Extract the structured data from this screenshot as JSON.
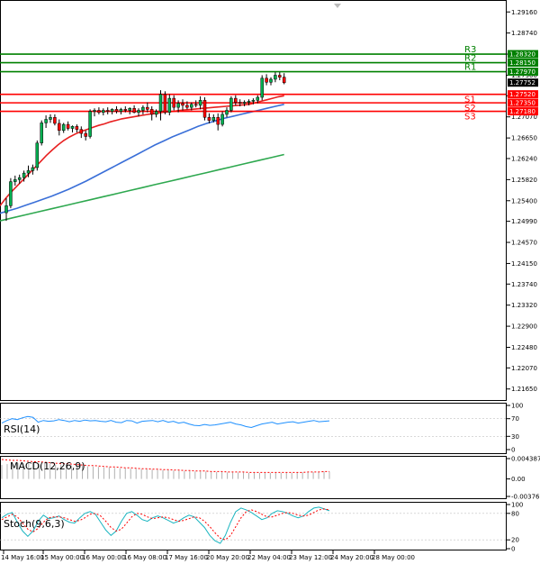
{
  "chart_data": {
    "type": "candlestick",
    "main": {
      "y_ticks": [
        "1.29160",
        "1.28740",
        "1.28320",
        "1.27900",
        "1.27490",
        "1.27070",
        "1.26650",
        "1.26240",
        "1.25820",
        "1.25400",
        "1.24990",
        "1.24570",
        "1.24150",
        "1.23740",
        "1.23320",
        "1.22900",
        "1.22480",
        "1.22070",
        "1.21650"
      ],
      "y_range": [
        1.2143,
        1.2938
      ],
      "current_price": "1.27752",
      "current_price_value": 1.27752,
      "x_labels": [
        "14 May 16:00",
        "15 May 00:00",
        "16 May 00:00",
        "16 May 08:00",
        "17 May 16:00",
        "20 May 20:00",
        "22 May 04:00",
        "23 May 12:00",
        "24 May 20:00",
        "28 May 00:00"
      ],
      "levels": [
        {
          "name": "R3",
          "value": 1.2832,
          "tag": "1.28320",
          "color": "#008000"
        },
        {
          "name": "R2",
          "value": 1.2815,
          "tag": "1.28150",
          "color": "#008000"
        },
        {
          "name": "R1",
          "value": 1.2797,
          "tag": "1.27970",
          "color": "#008000"
        },
        {
          "name": "S1",
          "value": 1.2752,
          "tag": "1.27520",
          "color": "#ff0000"
        },
        {
          "name": "S2",
          "value": 1.2735,
          "tag": "1.27350",
          "color": "#ff0000"
        },
        {
          "name": "S3",
          "value": 1.2718,
          "tag": "1.27180",
          "color": "#ff0000"
        }
      ],
      "candles": [
        [
          1.2516,
          1.2545,
          1.25,
          1.253
        ],
        [
          1.253,
          1.2585,
          1.2525,
          1.2578
        ],
        [
          1.2578,
          1.259,
          1.257,
          1.2582
        ],
        [
          1.2582,
          1.2592,
          1.2574,
          1.2586
        ],
        [
          1.2586,
          1.26,
          1.2578,
          1.2595
        ],
        [
          1.2595,
          1.261,
          1.2587,
          1.26
        ],
        [
          1.26,
          1.2612,
          1.2592,
          1.2606
        ],
        [
          1.2606,
          1.266,
          1.26,
          1.2655
        ],
        [
          1.2655,
          1.27,
          1.265,
          1.2695
        ],
        [
          1.2695,
          1.271,
          1.2685,
          1.2702
        ],
        [
          1.2702,
          1.2712,
          1.2695,
          1.2706
        ],
        [
          1.2706,
          1.2712,
          1.269,
          1.2694
        ],
        [
          1.2694,
          1.2702,
          1.267,
          1.268
        ],
        [
          1.268,
          1.2695,
          1.2675,
          1.2692
        ],
        [
          1.2692,
          1.2698,
          1.268,
          1.2684
        ],
        [
          1.2684,
          1.269,
          1.2676,
          1.2688
        ],
        [
          1.2688,
          1.2692,
          1.2676,
          1.2682
        ],
        [
          1.2682,
          1.2688,
          1.2665,
          1.2674
        ],
        [
          1.2674,
          1.268,
          1.266,
          1.2668
        ],
        [
          1.2668,
          1.2722,
          1.2664,
          1.2718
        ],
        [
          1.2718,
          1.2724,
          1.2708,
          1.272
        ],
        [
          1.272,
          1.2726,
          1.2712,
          1.2716
        ],
        [
          1.2716,
          1.2724,
          1.271,
          1.272
        ],
        [
          1.272,
          1.2726,
          1.2712,
          1.2718
        ],
        [
          1.2718,
          1.2724,
          1.2712,
          1.2722
        ],
        [
          1.2722,
          1.2728,
          1.2714,
          1.2718
        ],
        [
          1.2718,
          1.2725,
          1.2712,
          1.2722
        ],
        [
          1.2722,
          1.2728,
          1.2716,
          1.272
        ],
        [
          1.272,
          1.2726,
          1.2712,
          1.2724
        ],
        [
          1.2724,
          1.273,
          1.2714,
          1.2716
        ],
        [
          1.2716,
          1.2724,
          1.2708,
          1.272
        ],
        [
          1.272,
          1.273,
          1.2712,
          1.2726
        ],
        [
          1.2726,
          1.2736,
          1.2716,
          1.2722
        ],
        [
          1.2722,
          1.2728,
          1.27,
          1.2712
        ],
        [
          1.2712,
          1.2722,
          1.2706,
          1.2718
        ],
        [
          1.2718,
          1.276,
          1.27,
          1.2752
        ],
        [
          1.2752,
          1.2758,
          1.2712,
          1.2716
        ],
        [
          1.2716,
          1.2752,
          1.271,
          1.2744
        ],
        [
          1.2744,
          1.275,
          1.272,
          1.2726
        ],
        [
          1.2726,
          1.274,
          1.2716,
          1.2734
        ],
        [
          1.2734,
          1.2742,
          1.272,
          1.273
        ],
        [
          1.273,
          1.2738,
          1.2722,
          1.2726
        ],
        [
          1.2726,
          1.2736,
          1.272,
          1.2732
        ],
        [
          1.2732,
          1.274,
          1.2726,
          1.273
        ],
        [
          1.273,
          1.2748,
          1.2722,
          1.274
        ],
        [
          1.274,
          1.2746,
          1.27,
          1.2706
        ],
        [
          1.2706,
          1.2714,
          1.2694,
          1.27
        ],
        [
          1.27,
          1.2712,
          1.2696,
          1.2706
        ],
        [
          1.2706,
          1.2714,
          1.268,
          1.2692
        ],
        [
          1.2692,
          1.2718,
          1.2688,
          1.2712
        ],
        [
          1.2712,
          1.2726,
          1.2706,
          1.272
        ],
        [
          1.272,
          1.2748,
          1.2716,
          1.2744
        ],
        [
          1.2744,
          1.275,
          1.273,
          1.2736
        ],
        [
          1.2736,
          1.2742,
          1.2728,
          1.2734
        ],
        [
          1.2734,
          1.274,
          1.2728,
          1.2736
        ],
        [
          1.2736,
          1.2742,
          1.273,
          1.2738
        ],
        [
          1.2738,
          1.2744,
          1.2732,
          1.274
        ],
        [
          1.274,
          1.275,
          1.2734,
          1.2746
        ],
        [
          1.2746,
          1.279,
          1.274,
          1.2784
        ],
        [
          1.2784,
          1.2792,
          1.277,
          1.2776
        ],
        [
          1.2776,
          1.2786,
          1.277,
          1.2782
        ],
        [
          1.2782,
          1.2796,
          1.2776,
          1.279
        ],
        [
          1.279,
          1.2796,
          1.278,
          1.2786
        ],
        [
          1.2786,
          1.2794,
          1.2772,
          1.2775
        ]
      ],
      "ma_red": [
        1.253,
        1.2545,
        1.2558,
        1.257,
        1.2582,
        1.2594,
        1.2606,
        1.2618,
        1.263,
        1.2641,
        1.2651,
        1.266,
        1.2667,
        1.2673,
        1.2678,
        1.2682,
        1.2686,
        1.269,
        1.2693,
        1.2697,
        1.27,
        1.2703,
        1.2705,
        1.2707,
        1.2709,
        1.2711,
        1.2713,
        1.2714,
        1.2716,
        1.2717,
        1.2718,
        1.272,
        1.2721,
        1.2722,
        1.2723,
        1.2724,
        1.2725,
        1.2726,
        1.2727,
        1.2728,
        1.2729,
        1.273,
        1.2731,
        1.2732,
        1.2735,
        1.2738,
        1.2741,
        1.2744,
        1.2747,
        1.2749
      ],
      "ma_blue": [
        1.2515,
        1.252,
        1.2525,
        1.2531,
        1.2537,
        1.2543,
        1.2549,
        1.2556,
        1.2563,
        1.2571,
        1.2579,
        1.2588,
        1.2597,
        1.2606,
        1.2615,
        1.2624,
        1.2633,
        1.2642,
        1.2651,
        1.2659,
        1.2667,
        1.2674,
        1.2681,
        1.2688,
        1.2694,
        1.2699,
        1.2704,
        1.2708,
        1.2712,
        1.2716,
        1.272,
        1.2724,
        1.2728,
        1.2732
      ],
      "ma_green": [
        1.25,
        1.2506,
        1.2512,
        1.2518,
        1.2524,
        1.253,
        1.2536,
        1.2542,
        1.2548,
        1.2554,
        1.256,
        1.2566,
        1.2572,
        1.2578,
        1.2584,
        1.259,
        1.2596,
        1.2602,
        1.2608,
        1.2614,
        1.262,
        1.2626,
        1.2632
      ]
    },
    "rsi": {
      "label": "RSI(14)",
      "y_ticks": [
        "100",
        "70",
        "30",
        "0"
      ],
      "range": [
        0,
        100
      ],
      "values": [
        60,
        66,
        70,
        68,
        72,
        75,
        73,
        62,
        66,
        64,
        65,
        68,
        66,
        63,
        66,
        64,
        67,
        65,
        66,
        64,
        63,
        66,
        62,
        61,
        66,
        65,
        60,
        64,
        65,
        66,
        63,
        66,
        62,
        64,
        60,
        62,
        58,
        55,
        54,
        57,
        55,
        56,
        58,
        60,
        62,
        58,
        56,
        52,
        50,
        54,
        58,
        60,
        62,
        58,
        60,
        62,
        63,
        60,
        62,
        64,
        66,
        63,
        64,
        65
      ]
    },
    "macd": {
      "label": "MACD(12,26,9)",
      "y_ticks": [
        "0.004387",
        "0.00",
        "-0.003769"
      ],
      "range": [
        -0.003769,
        0.004387
      ],
      "histogram": [
        0.003,
        0.0032,
        0.0033,
        0.0034,
        0.0034,
        0.0034,
        0.0034,
        0.0033,
        0.0033,
        0.0032,
        0.0031,
        0.0031,
        0.003,
        0.0029,
        0.0029,
        0.0028,
        0.0027,
        0.0027,
        0.0026,
        0.0025,
        0.0025,
        0.0024,
        0.0023,
        0.0023,
        0.0022,
        0.0022,
        0.0021,
        0.0021,
        0.002,
        0.002,
        0.0019,
        0.0019,
        0.0018,
        0.0018,
        0.0017,
        0.0017,
        0.0016,
        0.0016,
        0.0016,
        0.0015,
        0.0015,
        0.0015,
        0.0014,
        0.0014,
        0.0014,
        0.0014,
        0.0013,
        0.0013,
        0.0013,
        0.0013,
        0.0013,
        0.0013,
        0.0013,
        0.0013,
        0.0013,
        0.0014,
        0.0014,
        0.0014,
        0.0015,
        0.0015,
        0.0016,
        0.0016
      ],
      "signal": [
        0.0042,
        0.0041,
        0.004,
        0.004,
        0.0039,
        0.0038,
        0.0037,
        0.0037,
        0.0036,
        0.0035,
        0.0034,
        0.0033,
        0.0033,
        0.0032,
        0.0031,
        0.003,
        0.0029,
        0.0029,
        0.0028,
        0.0027,
        0.0026,
        0.0026,
        0.0025,
        0.0024,
        0.0024,
        0.0023,
        0.0022,
        0.0022,
        0.0021,
        0.0021,
        0.002,
        0.002,
        0.0019,
        0.0019,
        0.0018,
        0.0018,
        0.0017,
        0.0017,
        0.0017,
        0.0016,
        0.0016,
        0.0016,
        0.0015,
        0.0015,
        0.0015,
        0.0015,
        0.0014,
        0.0014,
        0.0014,
        0.0014,
        0.0014,
        0.0014,
        0.0014,
        0.0014,
        0.0014,
        0.0014,
        0.0014,
        0.0015,
        0.0015,
        0.0015,
        0.0016,
        0.0016
      ]
    },
    "stoch": {
      "label": "Stoch(9,6,3)",
      "y_ticks": [
        "100",
        "80",
        "20",
        "0"
      ],
      "range": [
        0,
        100
      ],
      "main": [
        70,
        78,
        82,
        60,
        40,
        28,
        40,
        62,
        76,
        68,
        70,
        74,
        66,
        60,
        58,
        70,
        80,
        84,
        78,
        60,
        42,
        30,
        40,
        62,
        80,
        84,
        76,
        66,
        62,
        70,
        74,
        70,
        64,
        58,
        62,
        70,
        76,
        72,
        60,
        48,
        30,
        18,
        12,
        30,
        60,
        84,
        92,
        88,
        82,
        74,
        66,
        70,
        80,
        86,
        84,
        80,
        74,
        70,
        74,
        84,
        92,
        94,
        90,
        86
      ],
      "signal": [
        66,
        72,
        78,
        72,
        58,
        44,
        38,
        46,
        60,
        70,
        72,
        72,
        70,
        66,
        62,
        64,
        70,
        78,
        80,
        74,
        62,
        48,
        40,
        44,
        58,
        72,
        80,
        78,
        72,
        68,
        70,
        72,
        70,
        66,
        62,
        64,
        68,
        72,
        70,
        62,
        50,
        36,
        24,
        20,
        30,
        50,
        70,
        84,
        88,
        84,
        78,
        72,
        72,
        76,
        80,
        82,
        80,
        76,
        74,
        76,
        82,
        88,
        90,
        88
      ]
    }
  }
}
